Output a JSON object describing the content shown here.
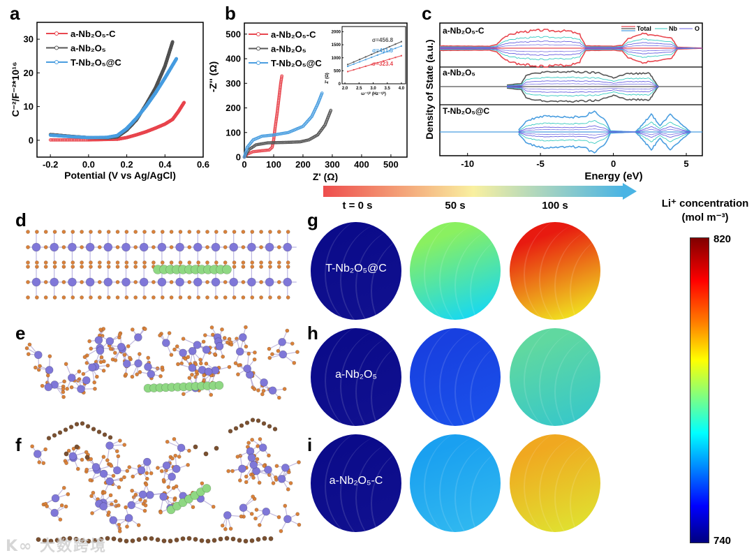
{
  "panel_labels": {
    "a": "a",
    "b": "b",
    "c": "c",
    "d": "d",
    "e": "e",
    "f": "f",
    "g": "g",
    "h": "h",
    "i": "i"
  },
  "materials": {
    "c": "a-Nb₂O₅-C",
    "a": "a-Nb₂O₅",
    "t": "T-Nb₂O₅@C"
  },
  "colors": {
    "red": "#e8474f",
    "black": "#555555",
    "blue": "#4a9ee0",
    "nb": "#35c9c0",
    "o": "#6a62e0",
    "li": "#8fd883",
    "nb_atom": "#7f77d8",
    "o_atom": "#d9813a",
    "c_atom": "#7a5030"
  },
  "chart_data": [
    {
      "id": "a",
      "type": "line",
      "title": "",
      "xlabel": "Potential (V vs Ag/AgCl)",
      "ylabel": "C⁻²/F⁻²*10¹⁶",
      "xlim": [
        -0.27,
        0.6
      ],
      "ylim": [
        -5,
        35
      ],
      "xticks": [
        "-0.2",
        "0.0",
        "0.2",
        "0.4",
        "0.6"
      ],
      "xtick_values": [
        -0.2,
        0,
        0.2,
        0.4,
        0.6
      ],
      "yticks": [
        "0",
        "10",
        "20",
        "30"
      ],
      "ytick_values": [
        0,
        10,
        20,
        30
      ],
      "legend": "top-left",
      "series": [
        {
          "name": "a-Nb₂O₅-C",
          "color": "#e8474f",
          "points": [
            [
              -0.2,
              0.1
            ],
            [
              0.0,
              0.1
            ],
            [
              0.15,
              0.3
            ],
            [
              0.2,
              0.8
            ],
            [
              0.25,
              1.6
            ],
            [
              0.3,
              2.5
            ],
            [
              0.35,
              3.6
            ],
            [
              0.4,
              4.8
            ],
            [
              0.44,
              6.2
            ],
            [
              0.47,
              8.5
            ],
            [
              0.5,
              11.2
            ]
          ]
        },
        {
          "name": "a-Nb₂O₅",
          "color": "#555555",
          "points": [
            [
              -0.2,
              1.7
            ],
            [
              -0.1,
              1.2
            ],
            [
              0.0,
              0.8
            ],
            [
              0.1,
              0.7
            ],
            [
              0.15,
              1.0
            ],
            [
              0.2,
              3.0
            ],
            [
              0.25,
              6.0
            ],
            [
              0.3,
              10.5
            ],
            [
              0.35,
              15.5
            ],
            [
              0.4,
              22.0
            ],
            [
              0.44,
              29.2
            ]
          ]
        },
        {
          "name": "T-Nb₂O₅@C",
          "color": "#4a9ee0",
          "points": [
            [
              -0.2,
              1.5
            ],
            [
              -0.1,
              1.1
            ],
            [
              0.0,
              0.8
            ],
            [
              0.1,
              0.9
            ],
            [
              0.15,
              1.4
            ],
            [
              0.2,
              3.5
            ],
            [
              0.25,
              6.5
            ],
            [
              0.3,
              10.0
            ],
            [
              0.35,
              14.0
            ],
            [
              0.4,
              18.5
            ],
            [
              0.46,
              24.2
            ]
          ]
        }
      ]
    },
    {
      "id": "b",
      "type": "line",
      "xlabel": "Z' (Ω)",
      "ylabel": "-Z'' (Ω)",
      "xlim": [
        0,
        555
      ],
      "ylim": [
        0,
        545
      ],
      "xticks": [
        "0",
        "100",
        "200",
        "300",
        "400",
        "500"
      ],
      "xtick_values": [
        0,
        100,
        200,
        300,
        400,
        500
      ],
      "yticks": [
        "0",
        "100",
        "200",
        "300",
        "400",
        "500"
      ],
      "ytick_values": [
        0,
        100,
        200,
        300,
        400,
        500
      ],
      "legend": "top-left",
      "series": [
        {
          "name": "a-Nb₂O₅-C",
          "color": "#e8474f",
          "points": [
            [
              0,
              0
            ],
            [
              10,
              12
            ],
            [
              30,
              22
            ],
            [
              60,
              26
            ],
            [
              85,
              29
            ],
            [
              95,
              40
            ],
            [
              100,
              70
            ],
            [
              105,
              120
            ],
            [
              112,
              180
            ],
            [
              118,
              240
            ],
            [
              124,
              300
            ],
            [
              128,
              330
            ]
          ]
        },
        {
          "name": "a-Nb₂O₅",
          "color": "#555555",
          "points": [
            [
              0,
              0
            ],
            [
              15,
              30
            ],
            [
              40,
              50
            ],
            [
              80,
              58
            ],
            [
              150,
              60
            ],
            [
              190,
              62
            ],
            [
              220,
              70
            ],
            [
              250,
              90
            ],
            [
              275,
              130
            ],
            [
              295,
              190
            ]
          ]
        },
        {
          "name": "T-Nb₂O₅@C",
          "color": "#4a9ee0",
          "points": [
            [
              0,
              0
            ],
            [
              10,
              40
            ],
            [
              30,
              70
            ],
            [
              60,
              85
            ],
            [
              100,
              90
            ],
            [
              150,
              100
            ],
            [
              200,
              125
            ],
            [
              230,
              165
            ],
            [
              250,
              215
            ],
            [
              265,
              260
            ]
          ]
        }
      ],
      "inset": {
        "type": "line",
        "xlabel": "ω⁻¹/² (Hz⁻¹/²)",
        "ylabel": "Z' (Ω)",
        "xlim": [
          1.9,
          4.15
        ],
        "ylim": [
          0,
          2200
        ],
        "xticks": [
          "2.0",
          "2.5",
          "3.0",
          "3.5",
          "4.0"
        ],
        "xtick_values": [
          2.0,
          2.5,
          3.0,
          3.5,
          4.0
        ],
        "yticks": [
          "0",
          "500",
          "1000",
          "1500",
          "2000"
        ],
        "ytick_values": [
          0,
          500,
          1000,
          1500,
          2000
        ],
        "series": [
          {
            "name": "a-Nb₂O₅",
            "color": "#555555",
            "x": [
              2.1,
              4.0
            ],
            "y": [
              740,
              1620
            ],
            "annotation": "σ=456.8"
          },
          {
            "name": "T-Nb₂O₅@C",
            "color": "#4a9ee0",
            "x": [
              2.1,
              4.0
            ],
            "y": [
              670,
              1450
            ],
            "annotation": "σ=411.5"
          },
          {
            "name": "a-Nb₂O₅-C",
            "color": "#e8474f",
            "x": [
              2.1,
              4.0
            ],
            "y": [
              470,
              1080
            ],
            "annotation": "σ=323.4"
          }
        ]
      }
    },
    {
      "id": "c",
      "type": "area",
      "xlabel": "Energy (eV)",
      "ylabel": "Density of State (a.u.)",
      "xlim": [
        -11.9,
        6.1
      ],
      "xticks": [
        "-10",
        "-5",
        "0",
        "5"
      ],
      "xtick_values": [
        -10,
        -5,
        0,
        5
      ],
      "legend": "top-right",
      "legend_entries": [
        "Total",
        "Nb",
        "O"
      ],
      "panels": [
        {
          "name": "a-Nb₂O₅-C",
          "color": "#e8474f",
          "nb_fraction": 0.62,
          "o_fraction": 0.38,
          "total": [
            [
              -11.9,
              0.12
            ],
            [
              -8.5,
              0.1
            ],
            [
              -8,
              0.2
            ],
            [
              -7.5,
              0.6
            ],
            [
              -6.5,
              0.85
            ],
            [
              -5,
              0.95
            ],
            [
              -4,
              0.93
            ],
            [
              -3,
              0.9
            ],
            [
              -2.3,
              0.72
            ],
            [
              -1.9,
              0.12
            ],
            [
              -1,
              0.12
            ],
            [
              0,
              0.1
            ],
            [
              0.6,
              0.15
            ],
            [
              1,
              0.5
            ],
            [
              2,
              0.75
            ],
            [
              3,
              0.7
            ],
            [
              4,
              0.55
            ],
            [
              4.4,
              0.05
            ],
            [
              6.1,
              0
            ]
          ]
        },
        {
          "name": "a-Nb₂O₅",
          "color": "#555555",
          "nb_fraction": 0.62,
          "o_fraction": 0.38,
          "total": [
            [
              -7.3,
              0.1
            ],
            [
              -6.3,
              0.2
            ],
            [
              -6,
              0.7
            ],
            [
              -5,
              0.88
            ],
            [
              -3,
              0.92
            ],
            [
              -1,
              0.85
            ],
            [
              0,
              0.55
            ],
            [
              1,
              0.8
            ],
            [
              2.5,
              0.82
            ],
            [
              3,
              0.1
            ],
            [
              3.1,
              0
            ]
          ]
        },
        {
          "name": "T-Nb₂O₅@C",
          "color": "#4a9ee0",
          "nb_fraction": 0.55,
          "o_fraction": 0.3,
          "total": [
            [
              -6.5,
              0.1
            ],
            [
              -6,
              0.5
            ],
            [
              -5,
              0.75
            ],
            [
              -3,
              0.7
            ],
            [
              -2,
              0.75
            ],
            [
              -1.3,
              1.0
            ],
            [
              -0.5,
              0.5
            ],
            [
              -0.2,
              0.05
            ],
            [
              1.5,
              0
            ],
            [
              1.8,
              0.2
            ],
            [
              2.6,
              0.85
            ],
            [
              3.2,
              0.3
            ],
            [
              3.9,
              0.85
            ],
            [
              4.8,
              0.3
            ],
            [
              5.3,
              0
            ]
          ]
        }
      ]
    }
  ],
  "simulation": {
    "arrow_colors": [
      "#ee4d4d",
      "#f9f0a0",
      "#4ab4e4"
    ],
    "times": [
      "t = 0 s",
      "50 s",
      "100 s"
    ],
    "colorbar": {
      "title": "Li⁺ concentration",
      "unit": "(mol m⁻³)",
      "max": "820",
      "min": "740"
    },
    "rows": [
      {
        "label": "T-Nb₂O₅@C",
        "spheres": [
          [
            "#0b0b8a",
            "#10108f"
          ],
          [
            "#8af060",
            "#18d8f0"
          ],
          [
            "#e81a10",
            "#f0e020"
          ]
        ]
      },
      {
        "label": "a-Nb₂O₅",
        "spheres": [
          [
            "#0b0b8a",
            "#10108f"
          ],
          [
            "#1840e0",
            "#1a50ea"
          ],
          [
            "#60d8a0",
            "#38c8c8"
          ]
        ]
      },
      {
        "label": "a-Nb₂O₅-C",
        "spheres": [
          [
            "#0b0b8a",
            "#10108f"
          ],
          [
            "#1aa0f0",
            "#30b8f0"
          ],
          [
            "#f0a820",
            "#e0e030"
          ]
        ]
      }
    ]
  },
  "watermark": "大数跨境"
}
